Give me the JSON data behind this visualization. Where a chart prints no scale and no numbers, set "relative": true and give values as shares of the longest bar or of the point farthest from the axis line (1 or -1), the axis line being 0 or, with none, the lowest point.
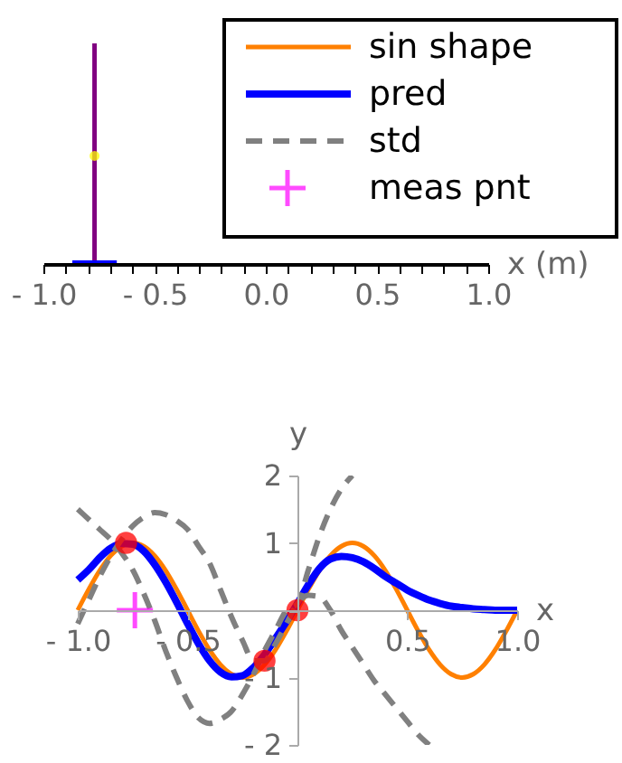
{
  "chart_data": [
    {
      "type": "line",
      "relative": true,
      "xlabel": "x (m)",
      "xlim": [
        -1,
        1
      ],
      "tick_labels": "x",
      "grid": false,
      "xticks": [
        {
          "value": -1,
          "label": "- 1.0"
        },
        {
          "value": -0.9,
          "label": null
        },
        {
          "value": -0.8,
          "label": null
        },
        {
          "value": -0.7,
          "label": null
        },
        {
          "value": -0.6,
          "label": null
        },
        {
          "value": -0.5,
          "label": "- 0.5"
        },
        {
          "value": -0.4,
          "label": null
        },
        {
          "value": -0.3,
          "label": null
        },
        {
          "value": -0.2,
          "label": null
        },
        {
          "value": -0.1,
          "label": null
        },
        {
          "value": 0,
          "label": "0.0"
        },
        {
          "value": 0.1,
          "label": null
        },
        {
          "value": 0.2,
          "label": null
        },
        {
          "value": 0.3,
          "label": null
        },
        {
          "value": 0.4,
          "label": null
        },
        {
          "value": 0.5,
          "label": "0.5"
        },
        {
          "value": 0.6,
          "label": null
        },
        {
          "value": 0.7,
          "label": null
        },
        {
          "value": 0.8,
          "label": null
        },
        {
          "value": 0.9,
          "label": null
        },
        {
          "value": 1,
          "label": "1.0"
        }
      ],
      "series": [
        {
          "color": "#800080",
          "x": [
            -0.77,
            -0.77
          ],
          "values": [
            0,
            1
          ]
        },
        {
          "color": "#0000ff",
          "x": [
            -0.87,
            -0.67
          ],
          "values": [
            0,
            0
          ]
        },
        {
          "type": "scatter",
          "color": "#ffff00",
          "marker": "circle",
          "x": [
            -0.77
          ],
          "values": [
            0.49
          ]
        }
      ]
    },
    {
      "type": "line",
      "xlabel": "x",
      "ylabel": "y",
      "xlim": [
        -1,
        1
      ],
      "ylim": [
        -2,
        2
      ],
      "grid": false,
      "legend": "top right",
      "xticks": [
        {
          "value": -1,
          "label": "- 1.0"
        },
        {
          "value": -0.5,
          "label": "- 0.5"
        },
        {
          "value": 0,
          "label": null
        },
        {
          "value": 0.5,
          "label": "0.5"
        },
        {
          "value": 1,
          "label": "1.0"
        }
      ],
      "yticks": [
        {
          "value": -2,
          "label": "- 2"
        },
        {
          "value": -1,
          "label": "- 1"
        },
        {
          "value": 0,
          "label": null
        },
        1,
        2
      ],
      "series": [
        {
          "name": "sin shape",
          "color": "#ff8000",
          "line_style": "solid",
          "x": [
            -1,
            -0.95,
            -0.9,
            -0.85,
            -0.8,
            -0.75,
            -0.7,
            -0.65,
            -0.6,
            -0.55,
            -0.5,
            -0.45,
            -0.4,
            -0.35,
            -0.3,
            -0.25,
            -0.2,
            -0.15,
            -0.1,
            -0.05,
            0,
            0.05,
            0.1,
            0.15,
            0.2,
            0.25,
            0.3,
            0.35,
            0.4,
            0.45,
            0.5,
            0.55,
            0.6,
            0.65,
            0.7,
            0.75,
            0.8,
            0.85,
            0.9,
            0.95,
            1
          ],
          "values": [
            0,
            0.31,
            0.59,
            0.81,
            0.95,
            1,
            0.95,
            0.81,
            0.59,
            0.31,
            0,
            -0.31,
            -0.59,
            -0.81,
            -0.95,
            -1,
            -0.95,
            -0.81,
            -0.59,
            -0.31,
            0,
            0.31,
            0.59,
            0.81,
            0.95,
            1,
            0.95,
            0.81,
            0.59,
            0.31,
            0,
            -0.31,
            -0.59,
            -0.81,
            -0.95,
            -1,
            -0.95,
            -0.81,
            -0.59,
            -0.31,
            0
          ]
        },
        {
          "name": "pred",
          "color": "#0000ff",
          "line_style": "solid",
          "x": [
            -1,
            -0.95,
            -0.9,
            -0.85,
            -0.8,
            -0.75,
            -0.7,
            -0.65,
            -0.6,
            -0.55,
            -0.5,
            -0.45,
            -0.4,
            -0.35,
            -0.3,
            -0.25,
            -0.2,
            -0.15,
            -0.1,
            -0.05,
            0,
            0.05,
            0.1,
            0.15,
            0.2,
            0.25,
            0.3,
            0.35,
            0.4,
            0.45,
            0.5,
            0.55,
            0.6,
            0.65,
            0.7,
            0.75,
            0.8,
            0.85,
            0.9,
            0.95,
            1
          ],
          "values": [
            0.45,
            0.6,
            0.78,
            0.92,
            0.99,
            0.98,
            0.88,
            0.68,
            0.42,
            0.12,
            -0.2,
            -0.5,
            -0.75,
            -0.92,
            -0.99,
            -0.97,
            -0.85,
            -0.66,
            -0.42,
            -0.17,
            0.1,
            0.38,
            0.62,
            0.76,
            0.8,
            0.78,
            0.72,
            0.62,
            0.5,
            0.4,
            0.3,
            0.22,
            0.15,
            0.1,
            0.06,
            0.04,
            0.02,
            0.01,
            0,
            0,
            0
          ]
        },
        {
          "name": "std",
          "color": "#808080",
          "line_style": "dashed",
          "x": [
            -1,
            -0.95,
            -0.9,
            -0.85,
            -0.8,
            -0.75,
            -0.7,
            -0.65,
            -0.6,
            -0.55,
            -0.5,
            -0.45,
            -0.4,
            -0.35,
            -0.3,
            -0.25,
            -0.2,
            -0.15,
            -0.1,
            -0.05,
            0,
            0.05,
            0.1,
            0.15,
            0.2,
            0.25
          ],
          "values": [
            1.5,
            1.35,
            1.2,
            1.05,
            0.85,
            0.6,
            0.25,
            -0.15,
            -0.6,
            -1.0,
            -1.35,
            -1.6,
            -1.68,
            -1.62,
            -1.5,
            -1.25,
            -0.95,
            -0.6,
            -0.3,
            0,
            0.1,
            0.6,
            1.1,
            1.5,
            1.8,
            2.0
          ]
        },
        {
          "color": "#808080",
          "line_style": "dashed",
          "x": [
            -1,
            -0.95,
            -0.9,
            -0.85,
            -0.8,
            -0.75,
            -0.7,
            -0.65,
            -0.6,
            -0.55,
            -0.5,
            -0.45,
            -0.4,
            -0.35,
            -0.3,
            -0.25,
            -0.2,
            -0.15,
            -0.1,
            -0.05,
            0,
            0.05,
            0.1,
            0.15,
            0.2,
            0.25,
            0.3,
            0.35,
            0.4,
            0.45,
            0.5,
            0.55,
            0.6
          ],
          "values": [
            -0.2,
            0.15,
            0.5,
            0.8,
            1.05,
            1.25,
            1.38,
            1.45,
            1.42,
            1.33,
            1.2,
            0.95,
            0.7,
            0.3,
            -0.1,
            -0.45,
            -0.75,
            -0.75,
            -0.5,
            -0.2,
            0.1,
            0.22,
            0.2,
            0,
            -0.3,
            -0.55,
            -0.8,
            -1.05,
            -1.25,
            -1.45,
            -1.65,
            -1.85,
            -2.0
          ]
        },
        {
          "type": "scatter",
          "color": "#ff0000",
          "marker": "circle",
          "x": [
            -0.78,
            -0.15,
            0
          ],
          "values": [
            1.0,
            -0.75,
            0.0
          ]
        },
        {
          "name": "meas pnt",
          "type": "scatter",
          "color": "#ff00ff",
          "marker": "cross",
          "x": [
            -0.74
          ],
          "values": [
            0
          ]
        }
      ]
    }
  ]
}
